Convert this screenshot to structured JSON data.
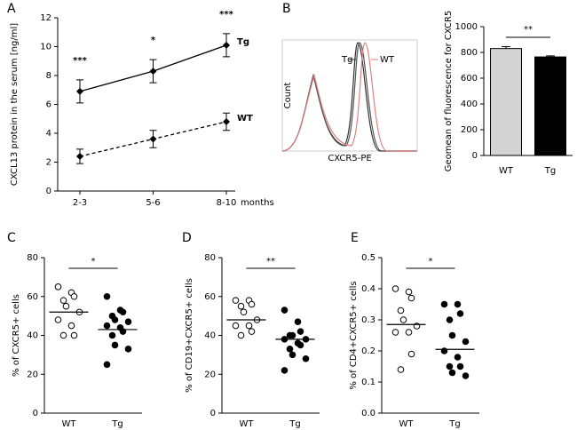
{
  "chart_data": [
    {
      "type": "line",
      "panel": "A",
      "y_label": "CXCL13 protein in the serum [ng/ml]",
      "x_unit": "months",
      "categories": [
        "2-3",
        "5-6",
        "8-10"
      ],
      "ylim": [
        0,
        12
      ],
      "yticks": [
        0,
        2,
        4,
        6,
        8,
        10,
        12
      ],
      "series": [
        {
          "name": "Tg",
          "color": "#000000",
          "dashed": false,
          "values": [
            6.9,
            8.3,
            10.1
          ],
          "errors": [
            0.8,
            0.8,
            0.8
          ]
        },
        {
          "name": "WT",
          "color": "#000000",
          "dashed": true,
          "values": [
            2.4,
            3.6,
            4.8
          ],
          "errors": [
            0.5,
            0.6,
            0.6
          ]
        }
      ],
      "significance": [
        "***",
        "*",
        "***"
      ]
    },
    {
      "type": "flow",
      "panel": "B",
      "x_label": "CXCR5-PE",
      "y_label": "Count",
      "legend": [
        "Tg",
        "WT"
      ]
    },
    {
      "type": "bar",
      "y_label": "Geomean of fluorescence for CXCR5",
      "categories": [
        "WT",
        "Tg"
      ],
      "values": [
        830,
        765
      ],
      "errors": [
        15,
        8
      ],
      "colors": [
        "#d3d3d3",
        "#000000"
      ],
      "ylim": [
        0,
        1000
      ],
      "yticks": [
        0,
        200,
        400,
        600,
        800,
        1000
      ],
      "significance": "**"
    },
    {
      "type": "dot",
      "panel": "C",
      "y_label": "% of CXCR5+ cells",
      "categories": [
        "WT",
        "Tg"
      ],
      "ylim": [
        0,
        80
      ],
      "yticks": [
        0,
        20,
        40,
        60,
        80
      ],
      "significance": "*",
      "groups": [
        {
          "filled": false,
          "mean": 52,
          "values": [
            65,
            62,
            60,
            58,
            55,
            52,
            48,
            45,
            40,
            40
          ]
        },
        {
          "filled": true,
          "mean": 43,
          "values": [
            60,
            53,
            52,
            50,
            48,
            47,
            45,
            44,
            42,
            40,
            35,
            33,
            25
          ]
        }
      ]
    },
    {
      "type": "dot",
      "panel": "D",
      "y_label": "% of CD19+CXCR5+ cells",
      "categories": [
        "WT",
        "Tg"
      ],
      "ylim": [
        0,
        80
      ],
      "yticks": [
        0,
        20,
        40,
        60,
        80
      ],
      "significance": "**",
      "groups": [
        {
          "filled": false,
          "mean": 48,
          "values": [
            58,
            58,
            56,
            55,
            52,
            48,
            45,
            45,
            42,
            40
          ]
        },
        {
          "filled": true,
          "mean": 38,
          "values": [
            53,
            47,
            42,
            40,
            40,
            38,
            38,
            36,
            35,
            33,
            30,
            28,
            22
          ]
        }
      ]
    },
    {
      "type": "dot",
      "panel": "E",
      "y_label": "% of CD4+CXCR5+ cells",
      "categories": [
        "WT",
        "Tg"
      ],
      "ylim": [
        0,
        0.5
      ],
      "yticks": [
        {
          "value": 0,
          "label": "0.0"
        },
        0.1,
        0.2,
        0.3,
        0.4,
        0.5
      ],
      "significance": "*",
      "groups": [
        {
          "filled": false,
          "mean": 0.285,
          "values": [
            0.4,
            0.39,
            0.37,
            0.33,
            0.3,
            0.28,
            0.26,
            0.26,
            0.19,
            0.14
          ]
        },
        {
          "filled": true,
          "mean": 0.205,
          "values": [
            0.35,
            0.35,
            0.32,
            0.3,
            0.25,
            0.23,
            0.2,
            0.18,
            0.15,
            0.15,
            0.13,
            0.12
          ]
        }
      ]
    }
  ]
}
